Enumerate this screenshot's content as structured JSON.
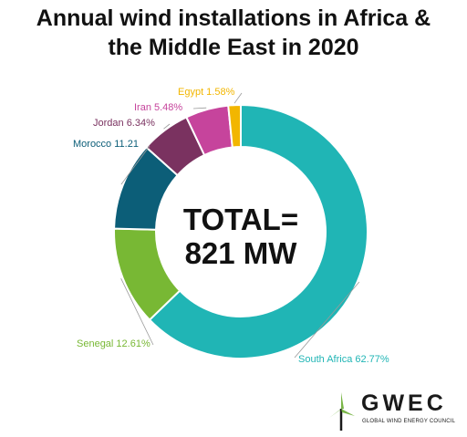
{
  "chart_data": {
    "type": "pie",
    "title_lines": [
      "Annual wind installations in Africa &",
      "the Middle East in 2020"
    ],
    "center_label_lines": [
      "TOTAL=",
      "821 MW"
    ],
    "slices": [
      {
        "name": "South Africa",
        "value": 62.77,
        "label": "South Africa 62.77%",
        "color": "#20b5b5"
      },
      {
        "name": "Senegal",
        "value": 12.61,
        "label": "Senegal 12.61%",
        "color": "#78b834"
      },
      {
        "name": "Morocco",
        "value": 11.21,
        "label": "Morocco 11.21",
        "color": "#0c5e78"
      },
      {
        "name": "Jordan",
        "value": 6.34,
        "label": "Jordan 6.34%",
        "color": "#7a3260"
      },
      {
        "name": "Iran",
        "value": 5.48,
        "label": "Iran 5.48%",
        "color": "#c6449c"
      },
      {
        "name": "Egypt",
        "value": 1.58,
        "label": "Egypt 1.58%",
        "color": "#f2b600"
      }
    ]
  },
  "logo": {
    "wordmark": "GWEC",
    "tagline": "GLOBAL WIND ENERGY COUNCIL"
  },
  "colors": {
    "title": "#111111",
    "center_text": "#111111",
    "logo_green": "#7ab648"
  }
}
